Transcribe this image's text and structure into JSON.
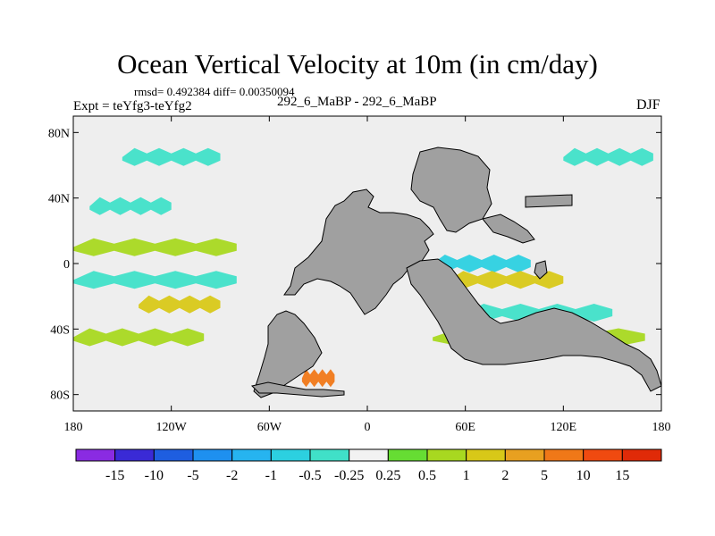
{
  "header": {
    "title": "Ocean Vertical Velocity at 10m (in cm/day)",
    "stats": "rmsd= 0.492384 diff= 0.00350094",
    "experiment": "Expt = teYfg3-teYfg2",
    "case": "292_6_MaBP - 292_6_MaBP",
    "season": "DJF"
  },
  "chart_data": {
    "type": "heatmap",
    "title": "Ocean Vertical Velocity at 10m (in cm/day)",
    "subtitle": "rmsd= 0.492384 diff= 0.00350094",
    "variable_units": "cm/day",
    "xlabel": "",
    "ylabel": "",
    "xlim": [
      -180,
      180
    ],
    "ylim": [
      -90,
      90
    ],
    "x_ticks": [
      {
        "value": -180,
        "label": "180"
      },
      {
        "value": -120,
        "label": "120W"
      },
      {
        "value": -60,
        "label": "60W"
      },
      {
        "value": 0,
        "label": "0"
      },
      {
        "value": 60,
        "label": "60E"
      },
      {
        "value": 120,
        "label": "120E"
      },
      {
        "value": 180,
        "label": "180"
      }
    ],
    "y_ticks": [
      {
        "value": 80,
        "label": "80N"
      },
      {
        "value": 40,
        "label": "40N"
      },
      {
        "value": 0,
        "label": "0"
      },
      {
        "value": -40,
        "label": "40S"
      },
      {
        "value": -80,
        "label": "80S"
      }
    ],
    "land_color": "#a0a0a0",
    "colorbar": {
      "orientation": "horizontal",
      "levels": [
        "-15",
        "-10",
        "-5",
        "-2",
        "-1",
        "-0.5",
        "-0.25",
        "0.25",
        "0.5",
        "1",
        "2",
        "5",
        "10",
        "15"
      ],
      "colors": [
        "#8a2be2",
        "#3a2ad6",
        "#1e5ee0",
        "#1e90f0",
        "#26b4f0",
        "#2cd0e0",
        "#40e0c8",
        "#f2f2f2",
        "#66dd33",
        "#a8d820",
        "#d8c818",
        "#e8a020",
        "#f07818",
        "#f04a10",
        "#e02a08"
      ]
    },
    "bands": [
      {
        "lat": 65,
        "lon_start": -150,
        "lon_end": -90,
        "value": -0.5
      },
      {
        "lat": 35,
        "lon_start": -170,
        "lon_end": -120,
        "value": -0.5
      },
      {
        "lat": 10,
        "lon_start": -180,
        "lon_end": -80,
        "value": 0.5
      },
      {
        "lat": -10,
        "lon_start": -180,
        "lon_end": -80,
        "value": -0.5
      },
      {
        "lat": -25,
        "lon_start": -140,
        "lon_end": -90,
        "value": 1
      },
      {
        "lat": -45,
        "lon_start": -180,
        "lon_end": -100,
        "value": 0.5
      },
      {
        "lat": -70,
        "lon_start": -40,
        "lon_end": -20,
        "value": 5
      },
      {
        "lat": 0,
        "lon_start": 40,
        "lon_end": 100,
        "value": -1
      },
      {
        "lat": -10,
        "lon_start": 50,
        "lon_end": 120,
        "value": 1
      },
      {
        "lat": -30,
        "lon_start": 60,
        "lon_end": 150,
        "value": -0.5
      },
      {
        "lat": -45,
        "lon_start": 40,
        "lon_end": 170,
        "value": 0.5
      },
      {
        "lat": 65,
        "lon_start": 120,
        "lon_end": 175,
        "value": -0.5
      }
    ]
  }
}
